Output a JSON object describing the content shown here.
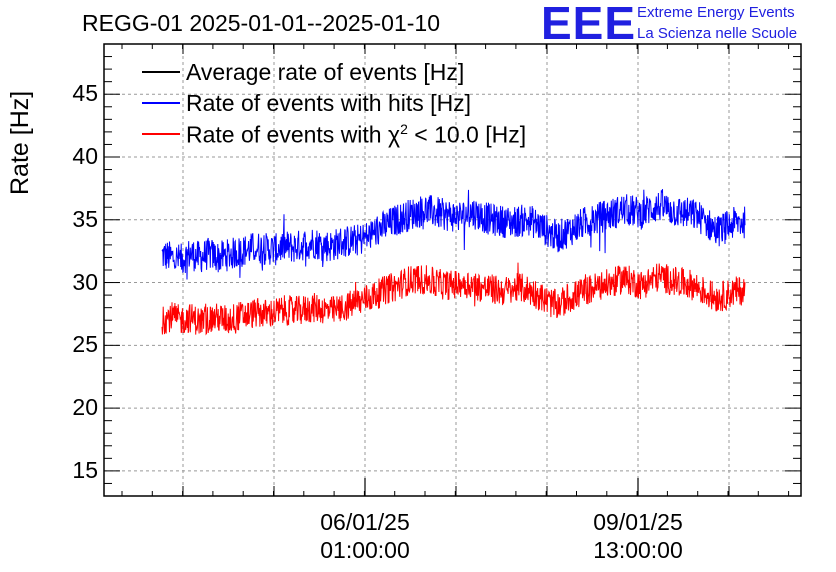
{
  "chart_data": {
    "type": "line",
    "title": "REGG-01 2025-01-01--2025-01-10",
    "ylabel": "Rate [Hz]",
    "xlabel": "",
    "ylim": [
      13.0,
      49.0
    ],
    "y_ticks": [
      "15",
      "20",
      "25",
      "30",
      "35",
      "40",
      "45"
    ],
    "x_ticks": [
      {
        "date": "06/01/25",
        "time": "01:00:00"
      },
      {
        "date": "09/01/25",
        "time": "13:00:00"
      }
    ],
    "grid": true,
    "legend_position": "top-left",
    "series": [
      {
        "name": "Average rate of events [Hz]",
        "color": "#000000",
        "values": []
      },
      {
        "name": "Rate of events with hits [Hz]",
        "color": "#0000ff",
        "values": [
          32.2,
          32.0,
          31.8,
          32.3,
          32.0,
          32.3,
          32.0,
          32.2,
          32.4,
          32.6,
          32.8,
          32.7,
          32.6,
          32.9,
          32.8,
          33.0,
          33.2,
          33.0,
          32.9,
          33.2,
          33.3,
          33.4,
          33.7,
          34.2,
          34.6,
          35.0,
          35.3,
          35.6,
          35.8,
          35.6,
          35.4,
          35.3,
          35.3,
          35.6,
          35.3,
          35.0,
          34.9,
          34.8,
          34.9,
          35.0,
          34.6,
          34.1,
          33.6,
          34.0,
          34.4,
          34.8,
          35.0,
          35.3,
          35.5,
          35.8,
          35.7,
          35.5,
          35.9,
          36.1,
          35.8,
          35.6,
          35.5,
          35.3,
          34.7,
          34.1,
          34.4,
          34.8,
          34.8
        ]
      },
      {
        "name": "Rate of events with χ² < 10.0 [Hz]",
        "color": "#ff0000",
        "values": [
          27.0,
          27.3,
          27.0,
          27.2,
          26.9,
          27.1,
          27.2,
          27.0,
          27.3,
          27.4,
          27.6,
          27.5,
          27.6,
          27.8,
          27.7,
          27.8,
          28.0,
          27.9,
          27.7,
          27.9,
          28.2,
          28.5,
          28.8,
          29.1,
          29.5,
          29.7,
          30.1,
          30.3,
          30.2,
          30.0,
          29.8,
          29.8,
          30.0,
          29.8,
          29.6,
          29.5,
          29.3,
          29.4,
          29.6,
          29.4,
          29.0,
          28.5,
          28.2,
          28.6,
          29.0,
          29.3,
          29.6,
          29.8,
          30.0,
          30.3,
          30.1,
          29.8,
          30.2,
          30.5,
          30.2,
          30.0,
          29.9,
          29.6,
          29.1,
          28.8,
          29.0,
          29.3,
          29.4
        ]
      }
    ]
  },
  "branding": {
    "logo": "EEE",
    "line1": "Extreme Energy Events",
    "line2": "La Scienza nelle Scuole"
  },
  "legend_parts": {
    "chi_prefix": "Rate of events with χ",
    "chi_exp": "2",
    "chi_suffix": " < 10.0 [Hz]"
  }
}
